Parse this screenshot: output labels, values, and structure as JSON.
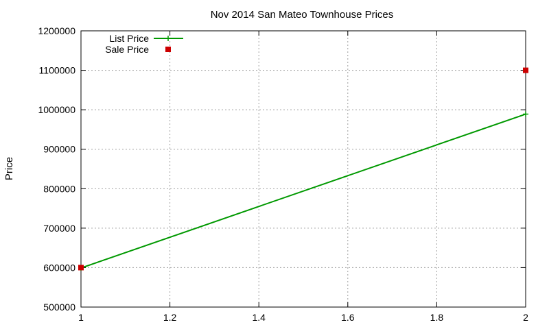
{
  "chart_data": {
    "type": "line",
    "title": "Nov 2014 San Mateo Townhouse Prices",
    "xlabel": "",
    "ylabel": "Price",
    "xlim": [
      1,
      2
    ],
    "ylim": [
      500000,
      1200000
    ],
    "xticks": [
      1,
      1.2,
      1.4,
      1.6,
      1.8,
      2
    ],
    "xtick_labels": [
      "1",
      "1.2",
      "1.4",
      "1.6",
      "1.8",
      "2"
    ],
    "yticks": [
      500000,
      600000,
      700000,
      800000,
      900000,
      1000000,
      1100000,
      1200000
    ],
    "ytick_labels": [
      "500000",
      "600000",
      "700000",
      "800000",
      "900000",
      "1000000",
      "1100000",
      "1200000"
    ],
    "grid": true,
    "legend_position": "top-left",
    "series": [
      {
        "name": "List Price",
        "style": "linespoints",
        "marker": "plus",
        "color": "#009900",
        "x": [
          1,
          2
        ],
        "y": [
          599000,
          989000
        ]
      },
      {
        "name": "Sale Price",
        "style": "points",
        "marker": "square",
        "color": "#cc0000",
        "x": [
          1,
          2
        ],
        "y": [
          600000,
          1100000
        ]
      }
    ]
  }
}
